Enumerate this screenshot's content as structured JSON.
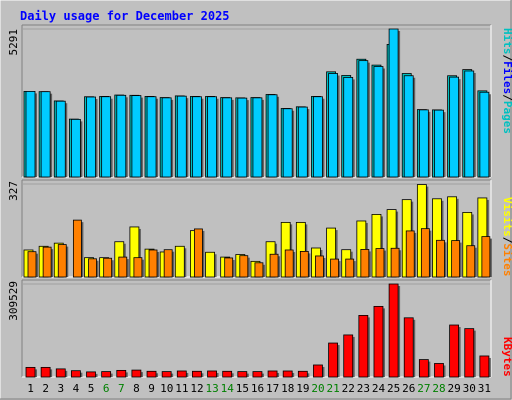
{
  "chart_data": [
    {
      "type": "bar",
      "title": "Daily usage for December 2025",
      "categories": [
        "1",
        "2",
        "3",
        "4",
        "5",
        "6",
        "7",
        "8",
        "9",
        "10",
        "11",
        "12",
        "13",
        "14",
        "15",
        "16",
        "17",
        "18",
        "19",
        "20",
        "21",
        "22",
        "23",
        "24",
        "25",
        "26",
        "27",
        "28",
        "29",
        "30",
        "31"
      ],
      "weekend_days": [
        "6",
        "7",
        "13",
        "14",
        "20",
        "21",
        "27",
        "28"
      ],
      "y_tick_label": "5291",
      "ylim": [
        0,
        5291
      ],
      "series": [
        {
          "name": "Hits",
          "color": "#00c0c0",
          "values": [
            3060,
            3050,
            2720,
            2070,
            2870,
            2880,
            2930,
            2920,
            2880,
            2840,
            2900,
            2880,
            2880,
            2840,
            2830,
            2840,
            2950,
            2450,
            2510,
            2880,
            3760,
            3630,
            4210,
            4000,
            4740,
            3700,
            2410,
            2400,
            3620,
            3840,
            3080
          ]
        },
        {
          "name": "Files",
          "color": "#00ccff",
          "values": [
            3060,
            3050,
            2710,
            2060,
            2860,
            2870,
            2920,
            2910,
            2870,
            2830,
            2890,
            2870,
            2870,
            2830,
            2820,
            2830,
            2940,
            2440,
            2500,
            2870,
            3700,
            3560,
            4160,
            3950,
            5291,
            3620,
            2400,
            2390,
            3570,
            3790,
            3030
          ]
        },
        {
          "name": "Pages",
          "color": "#00c0c0",
          "values": [
            1790,
            1780,
            1600,
            1370,
            1700,
            1710,
            1720,
            1720,
            1700,
            1690,
            1720,
            1710,
            1700,
            1690,
            1680,
            1690,
            1720,
            1480,
            1510,
            1700,
            2080,
            2020,
            2290,
            2200,
            2560,
            2040,
            1480,
            1470,
            2010,
            2110,
            1790
          ]
        }
      ]
    },
    {
      "type": "bar",
      "y_tick_label": "327",
      "ylim": [
        0,
        327
      ],
      "series": [
        {
          "name": "Visits",
          "color": "#ffff00",
          "values": [
            95,
            108,
            119,
            0,
            68,
            68,
            124,
            176,
            98,
            88,
            108,
            163,
            87,
            70,
            79,
            55,
            124,
            192,
            192,
            102,
            172,
            96,
            197,
            220,
            237,
            272,
            325,
            275,
            282,
            227,
            278
          ]
        },
        {
          "name": "Sites",
          "color": "#ff8000",
          "values": [
            89,
            105,
            114,
            200,
            64,
            66,
            70,
            68,
            95,
            96,
            0,
            169,
            0,
            67,
            75,
            50,
            80,
            95,
            90,
            74,
            63,
            63,
            97,
            100,
            101,
            162,
            170,
            129,
            128,
            110,
            142
          ]
        }
      ]
    },
    {
      "type": "bar",
      "y_tick_label": "309529",
      "ylim": [
        0,
        309529
      ],
      "series": [
        {
          "name": "KBytes",
          "color": "#ff0000",
          "values": [
            32000,
            32000,
            27000,
            21000,
            17000,
            18000,
            22000,
            23000,
            19000,
            18000,
            20000,
            19000,
            20000,
            19000,
            18000,
            18000,
            20000,
            20000,
            19000,
            40000,
            113000,
            140000,
            205000,
            235000,
            309529,
            197000,
            58000,
            45000,
            173000,
            161000,
            70000
          ]
        }
      ]
    }
  ],
  "colors": {
    "background": "#c0c0c0",
    "plot_area": "#c0c0c0",
    "title": "#0000ff",
    "weekday_label": "#000000",
    "weekend_label": "#008000"
  },
  "legend_separator": "/"
}
